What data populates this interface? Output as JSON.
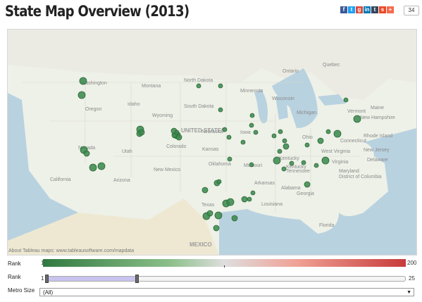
{
  "title": "State Map Overview (2013)",
  "share": {
    "icons": [
      {
        "name": "facebook-icon",
        "glyph": "f",
        "color": "#3b5998"
      },
      {
        "name": "twitter-icon",
        "glyph": "t",
        "color": "#1da1f2"
      },
      {
        "name": "google-plus-icon",
        "glyph": "g",
        "color": "#dd4b39"
      },
      {
        "name": "linkedin-icon",
        "glyph": "in",
        "color": "#0077b5"
      },
      {
        "name": "tumblr-icon",
        "glyph": "t",
        "color": "#35465c"
      },
      {
        "name": "stumbleupon-icon",
        "glyph": "s",
        "color": "#eb4924"
      },
      {
        "name": "addthis-icon",
        "glyph": "+",
        "color": "#f8694d"
      }
    ],
    "count": "34"
  },
  "map": {
    "attribution": "About Tableau maps: www.tableausoftware.com/mapdata",
    "labels": [
      {
        "name": "label-washington",
        "text": "Washington"
      },
      {
        "name": "label-oregon",
        "text": "Oregon"
      },
      {
        "name": "label-montana",
        "text": "Montana"
      },
      {
        "name": "label-north-dakota",
        "text": "North Dakota"
      },
      {
        "name": "label-minnesota",
        "text": "Minnesota"
      },
      {
        "name": "label-south-dakota",
        "text": "South Dakota"
      },
      {
        "name": "label-wyoming",
        "text": "Wyoming"
      },
      {
        "name": "label-idaho",
        "text": "Idaho"
      },
      {
        "name": "label-nebraska",
        "text": "Nebraska"
      },
      {
        "name": "label-iowa",
        "text": "Iowa"
      },
      {
        "name": "label-utah",
        "text": "Utah"
      },
      {
        "name": "label-colorado",
        "text": "Colorado"
      },
      {
        "name": "label-kansas",
        "text": "Kansas"
      },
      {
        "name": "label-nevada",
        "text": "Nevada"
      },
      {
        "name": "label-california",
        "text": "California"
      },
      {
        "name": "label-arizona",
        "text": "Arizona"
      },
      {
        "name": "label-new-mexico",
        "text": "New Mexico"
      },
      {
        "name": "label-oklahoma",
        "text": "Oklahoma"
      },
      {
        "name": "label-texas",
        "text": "Texas"
      },
      {
        "name": "label-mexico",
        "text": "MEXICO"
      },
      {
        "name": "label-united-states",
        "text": "UNITED STATES"
      },
      {
        "name": "label-ontario",
        "text": "Ontario"
      },
      {
        "name": "label-quebec",
        "text": "Quebec"
      },
      {
        "name": "label-wisconsin",
        "text": "Wisconsin"
      },
      {
        "name": "label-michigan",
        "text": "Michigan"
      },
      {
        "name": "label-ohio",
        "text": "Ohio"
      },
      {
        "name": "label-missouri",
        "text": "Missouri"
      },
      {
        "name": "label-kentucky",
        "text": "Kentucky"
      },
      {
        "name": "label-tennessee",
        "text": "Tennessee"
      },
      {
        "name": "label-arkansas",
        "text": "Arkansas"
      },
      {
        "name": "label-alabama",
        "text": "Alabama"
      },
      {
        "name": "label-georgia",
        "text": "Georgia"
      },
      {
        "name": "label-florida",
        "text": "Florida"
      },
      {
        "name": "label-louisiana",
        "text": "Louisiana"
      },
      {
        "name": "label-virginia",
        "text": "Virginia"
      },
      {
        "name": "label-west-virginia",
        "text": "West Virginia"
      },
      {
        "name": "label-maine",
        "text": "Maine"
      },
      {
        "name": "label-vermont",
        "text": "Vermont"
      },
      {
        "name": "label-new-hampshire",
        "text": "New Hampshire"
      },
      {
        "name": "label-rhode-island",
        "text": "Rhode Island"
      },
      {
        "name": "label-connecticut",
        "text": "Connecticut"
      },
      {
        "name": "label-new-jersey",
        "text": "New Jersey"
      },
      {
        "name": "label-delaware",
        "text": "Delaware"
      },
      {
        "name": "label-maryland",
        "text": "Maryland"
      },
      {
        "name": "label-dc",
        "text": "District of Columbia"
      },
      {
        "name": "label-kentucky2",
        "text": "Kentucky"
      }
    ]
  },
  "legend": {
    "rank_label": "Rank",
    "min": "1",
    "max": "200",
    "colors": {
      "low": "#2f7a40",
      "mid": "#dedede",
      "high": "#c73b3b"
    }
  },
  "rank_filter": {
    "label": "Rank",
    "min": "1",
    "max": "25",
    "low_value": 1,
    "high_value": 7
  },
  "metro_size": {
    "label": "Metro Size",
    "selected": "(All)"
  }
}
